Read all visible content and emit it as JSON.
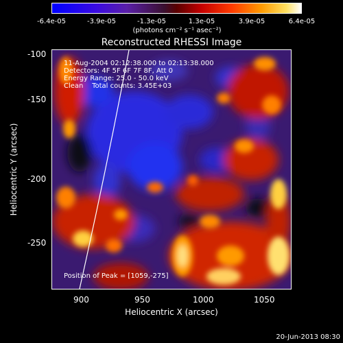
{
  "colorbar": {
    "ticks": [
      "-6.4e-05",
      "-3.9e-05",
      "-1.3e-05",
      "1.3e-05",
      "3.9e-05",
      "6.4e-05"
    ],
    "units": "(photons cm⁻² s⁻¹ asec⁻²)"
  },
  "plot": {
    "title": "Reconstructed RHESSI Image",
    "xlabel": "Heliocentric X (arcsec)",
    "ylabel": "Heliocentric Y (arcsec)",
    "xticks": [
      "900",
      "950",
      "1000",
      "1050"
    ],
    "yticks": [
      "-100",
      "-150",
      "-200",
      "-250"
    ]
  },
  "info": {
    "line1": "11-Aug-2004 02:12:38.000 to 02:13:38.000",
    "line2": "Detectors: 4F 5F 6F 7F 8F, Att 0",
    "line3": "Energy Range: 25.0 - 50.0 keV",
    "line4": "Clean    Total counts: 3.45E+03",
    "peak": "Position of Peak = [1059,-275]"
  },
  "footer": "20-Jun-2013 08:30"
}
